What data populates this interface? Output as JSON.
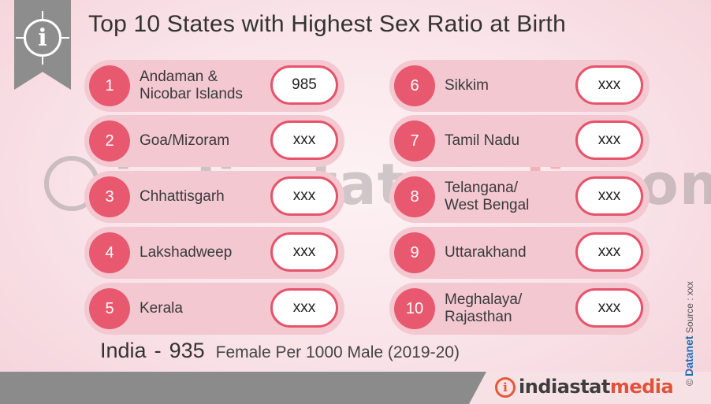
{
  "header": {
    "title": "Top 10 States with Highest Sex Ratio at Birth",
    "info_icon": "info-icon"
  },
  "watermark": {
    "text_before": "indiastat",
    "text_accent": "media",
    "text_after": "com"
  },
  "states": [
    {
      "rank": "1",
      "name": "Andaman &\nNicobar Islands",
      "value": "985"
    },
    {
      "rank": "2",
      "name": "Goa/Mizoram",
      "value": "xxx"
    },
    {
      "rank": "3",
      "name": "Chhattisgarh",
      "value": "xxx"
    },
    {
      "rank": "4",
      "name": "Lakshadweep",
      "value": "xxx"
    },
    {
      "rank": "5",
      "name": "Kerala",
      "value": "xxx"
    },
    {
      "rank": "6",
      "name": "Sikkim",
      "value": "xxx"
    },
    {
      "rank": "7",
      "name": "Tamil Nadu",
      "value": "xxx"
    },
    {
      "rank": "8",
      "name": "Telangana/\nWest Bengal",
      "value": "xxx"
    },
    {
      "rank": "9",
      "name": "Uttarakhand",
      "value": "xxx"
    },
    {
      "rank": "10",
      "name": "Meghalaya/\nRajasthan",
      "value": "xxx"
    }
  ],
  "footer": {
    "country": "India",
    "dash": "-",
    "value": "935",
    "unit": "Female Per 1000 Male (2019-20)"
  },
  "logo": {
    "text_main": "indiastat",
    "text_accent": "media"
  },
  "side_credit": {
    "copyright": "©",
    "brand": "Datanet",
    "source": "Source : xxx"
  },
  "colors": {
    "accent": "#e8586f",
    "card_bg": "#f3c8d1",
    "ribbon": "#8d8d8d"
  }
}
